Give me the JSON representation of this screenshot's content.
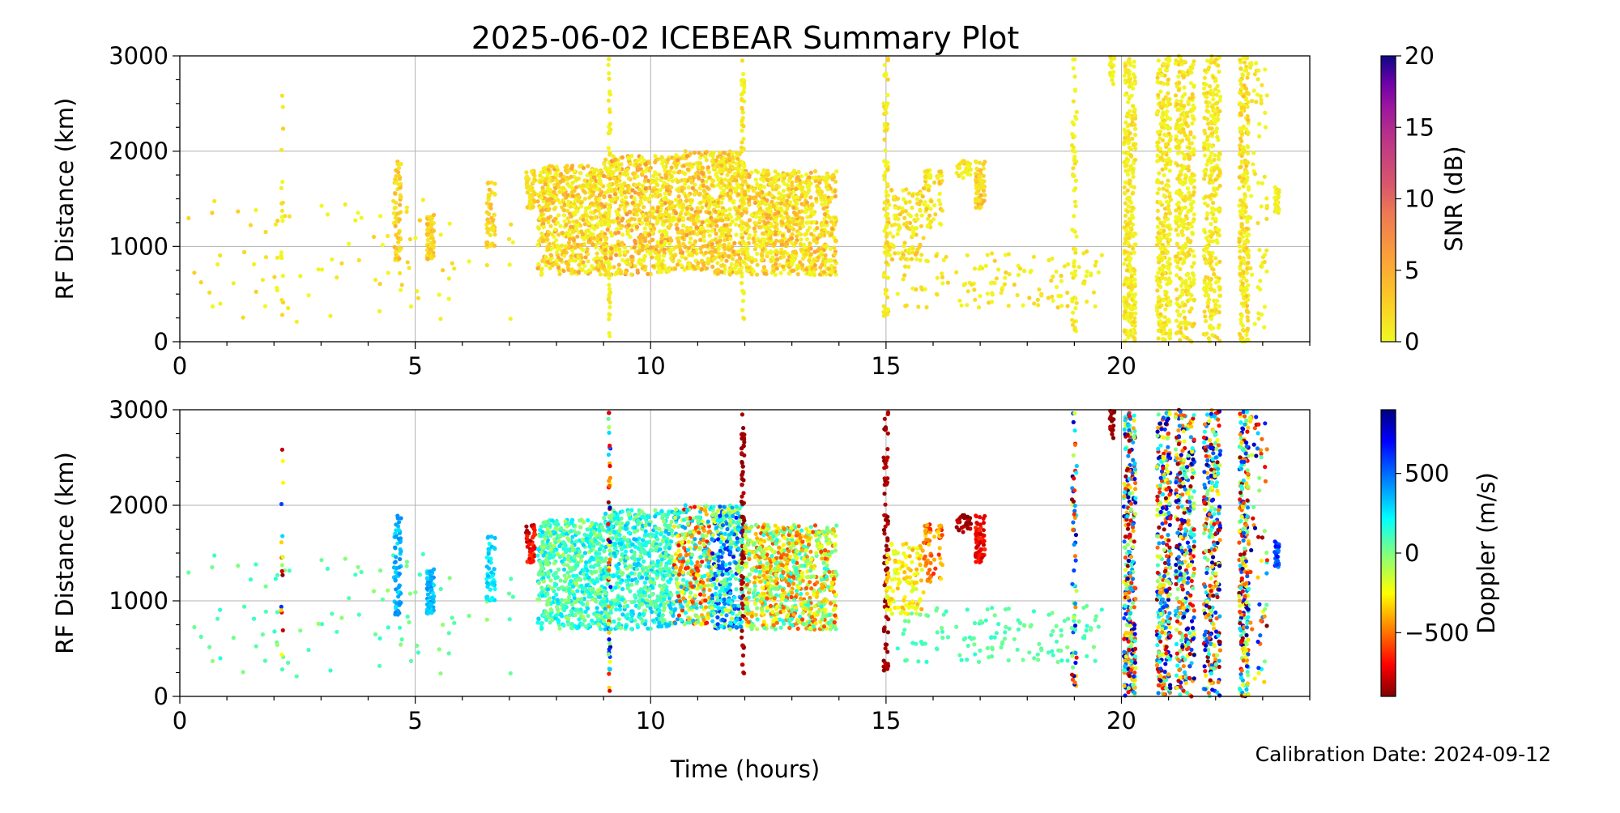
{
  "chart_data": {
    "type": "scatter",
    "title": "2025-06-02 ICEBEAR Summary Plot",
    "xlabel": "Time (hours)",
    "footer": "Calibration Date: 2024-09-12",
    "xlim": [
      0,
      24
    ],
    "xticks": [
      "0",
      "5",
      "10",
      "15",
      "20"
    ],
    "panels": [
      {
        "name": "snr",
        "ylabel": "RF Distance (km)",
        "ylim": [
          0,
          3000
        ],
        "yticks": [
          "0",
          "1000",
          "2000",
          "3000"
        ],
        "colorbar": {
          "label": "SNR (dB)",
          "range": [
            0,
            20
          ],
          "ticks": [
            "0",
            "5",
            "10",
            "15",
            "20"
          ],
          "colormap": "plasma_r",
          "color_variable": "snr"
        }
      },
      {
        "name": "doppler",
        "ylabel": "RF Distance (km)",
        "ylim": [
          0,
          3000
        ],
        "yticks": [
          "0",
          "1000",
          "2000",
          "3000"
        ],
        "colorbar": {
          "label": "Doppler (m/s)",
          "range": [
            -900,
            900
          ],
          "ticks": [
            "−500",
            "0",
            "500"
          ],
          "tick_values": [
            -500,
            0,
            500
          ],
          "colormap": "jet_r",
          "color_variable": "dop"
        }
      }
    ],
    "grid": true,
    "clusters": [
      {
        "t": [
          0,
          7.2
        ],
        "r": [
          200,
          1500
        ],
        "n": 90,
        "dop": [
          -50,
          150
        ],
        "snr": [
          0,
          3
        ]
      },
      {
        "t": [
          2.15,
          2.2
        ],
        "r": [
          200,
          2800
        ],
        "n": 18,
        "dop": [
          -900,
          900
        ],
        "snr": [
          0,
          3
        ]
      },
      {
        "t": [
          4.55,
          4.7
        ],
        "r": [
          850,
          1900
        ],
        "n": 70,
        "dop": [
          250,
          450
        ],
        "snr": [
          1,
          5
        ]
      },
      {
        "t": [
          5.25,
          5.4
        ],
        "r": [
          850,
          1350
        ],
        "n": 70,
        "dop": [
          250,
          450
        ],
        "snr": [
          1,
          5
        ]
      },
      {
        "t": [
          6.5,
          6.7
        ],
        "r": [
          950,
          1700
        ],
        "n": 50,
        "dop": [
          200,
          350
        ],
        "snr": [
          1,
          5
        ]
      },
      {
        "t": [
          7.35,
          7.55
        ],
        "r": [
          1400,
          1800
        ],
        "n": 50,
        "dop": [
          -850,
          -600
        ],
        "snr": [
          1,
          4
        ]
      },
      {
        "t": [
          7.6,
          9.0
        ],
        "r": [
          700,
          1850
        ],
        "n": 600,
        "dop": [
          -100,
          300
        ],
        "snr": [
          0,
          6
        ]
      },
      {
        "t": [
          9.0,
          10.5
        ],
        "r": [
          700,
          1950
        ],
        "n": 650,
        "dop": [
          -50,
          350
        ],
        "snr": [
          0,
          7
        ]
      },
      {
        "t": [
          9.1,
          9.15
        ],
        "r": [
          0,
          3000
        ],
        "n": 60,
        "dop": [
          -900,
          900
        ],
        "snr": [
          0,
          2
        ]
      },
      {
        "t": [
          10.5,
          11.3
        ],
        "r": [
          750,
          2000
        ],
        "n": 350,
        "dop": [
          -700,
          400
        ],
        "snr": [
          0,
          7
        ]
      },
      {
        "t": [
          11.3,
          11.95
        ],
        "r": [
          700,
          2000
        ],
        "n": 350,
        "dop": [
          -200,
          700
        ],
        "snr": [
          0,
          6
        ]
      },
      {
        "t": [
          11.93,
          11.99
        ],
        "r": [
          200,
          3000
        ],
        "n": 80,
        "dop": [
          -900,
          -800
        ],
        "snr": [
          0,
          3
        ]
      },
      {
        "t": [
          12.0,
          13.95
        ],
        "r": [
          700,
          1800
        ],
        "n": 800,
        "dop": [
          -600,
          200
        ],
        "snr": [
          0,
          6
        ]
      },
      {
        "t": [
          14.95,
          15.05
        ],
        "r": [
          250,
          3000
        ],
        "n": 80,
        "dop": [
          -900,
          -800
        ],
        "snr": [
          0,
          3
        ]
      },
      {
        "t": [
          15.0,
          15.8
        ],
        "r": [
          850,
          1600
        ],
        "n": 120,
        "dop": [
          -400,
          -150
        ],
        "snr": [
          0,
          4
        ]
      },
      {
        "t": [
          15.8,
          16.2
        ],
        "r": [
          1200,
          1800
        ],
        "n": 60,
        "dop": [
          -700,
          -300
        ],
        "snr": [
          0,
          4
        ]
      },
      {
        "t": [
          16.5,
          16.8
        ],
        "r": [
          1700,
          1900
        ],
        "n": 30,
        "dop": [
          -900,
          -750
        ],
        "snr": [
          0,
          3
        ]
      },
      {
        "t": [
          16.9,
          17.1
        ],
        "r": [
          1400,
          1900
        ],
        "n": 60,
        "dop": [
          -800,
          -600
        ],
        "snr": [
          1,
          5
        ]
      },
      {
        "t": [
          15.2,
          19.6
        ],
        "r": [
          350,
          950
        ],
        "n": 130,
        "dop": [
          0,
          150
        ],
        "snr": [
          0,
          3
        ]
      },
      {
        "t": [
          18.95,
          19.05
        ],
        "r": [
          0,
          3000
        ],
        "n": 60,
        "dop": [
          -900,
          900
        ],
        "snr": [
          0,
          2
        ]
      },
      {
        "t": [
          19.75,
          19.85
        ],
        "r": [
          2700,
          3000
        ],
        "n": 20,
        "dop": [
          -900,
          -800
        ],
        "snr": [
          0,
          2
        ]
      },
      {
        "t": [
          20.05,
          20.3
        ],
        "r": [
          0,
          3000
        ],
        "n": 300,
        "dop": [
          -900,
          900
        ],
        "snr": [
          0,
          3
        ]
      },
      {
        "t": [
          20.75,
          21.05
        ],
        "r": [
          0,
          3000
        ],
        "n": 300,
        "dop": [
          -900,
          900
        ],
        "snr": [
          0,
          3
        ]
      },
      {
        "t": [
          21.15,
          21.55
        ],
        "r": [
          0,
          3000
        ],
        "n": 350,
        "dop": [
          -900,
          900
        ],
        "snr": [
          0,
          3
        ]
      },
      {
        "t": [
          21.75,
          22.1
        ],
        "r": [
          0,
          3000
        ],
        "n": 300,
        "dop": [
          -900,
          900
        ],
        "snr": [
          0,
          3
        ]
      },
      {
        "t": [
          22.5,
          22.7
        ],
        "r": [
          0,
          3000
        ],
        "n": 250,
        "dop": [
          -900,
          900
        ],
        "snr": [
          0,
          4
        ]
      },
      {
        "t": [
          22.7,
          23.1
        ],
        "r": [
          150,
          3000
        ],
        "n": 60,
        "dop": [
          -900,
          900
        ],
        "snr": [
          0,
          2
        ]
      },
      {
        "t": [
          23.25,
          23.35
        ],
        "r": [
          1350,
          1650
        ],
        "n": 30,
        "dop": [
          400,
          700
        ],
        "snr": [
          0,
          3
        ]
      }
    ]
  }
}
